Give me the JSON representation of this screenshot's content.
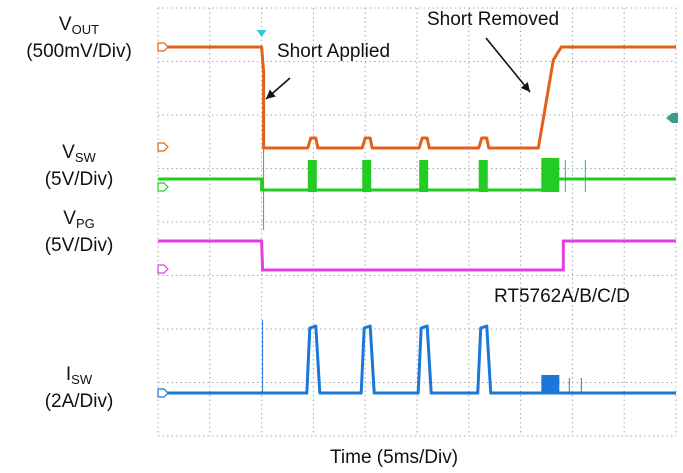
{
  "labels": {
    "vout": {
      "main": "V",
      "sub": "OUT",
      "scale": "(500mV/Div)"
    },
    "vsw": {
      "main": "V",
      "sub": "SW",
      "scale": "(5V/Div)"
    },
    "vpg": {
      "main": "V",
      "sub": "PG",
      "scale": "(5V/Div)"
    },
    "isw": {
      "main": "I",
      "sub": "SW",
      "scale": "(2A/Div)"
    }
  },
  "annotations": {
    "short_applied": "Short Applied",
    "short_removed": "Short Removed",
    "part_number": "RT5762A/B/C/D"
  },
  "chart_data": {
    "type": "line",
    "xlabel": "Time (5ms/Div)",
    "x_divisions": 10,
    "y_divisions": 8,
    "grid": true,
    "colors": {
      "vout": "#e0601c",
      "vsw": "#22cc22",
      "vpg": "#e040e0",
      "isw": "#1a78d8",
      "grid": "#a8a8a8"
    },
    "events_div": {
      "short_applied": 2.0,
      "short_removed": 7.4
    },
    "hiccup_pulses_div": [
      2.95,
      4.0,
      5.1,
      6.25
    ],
    "series": [
      {
        "key": "vout"
      },
      {
        "key": "vsw"
      },
      {
        "key": "vpg"
      },
      {
        "key": "isw"
      }
    ]
  }
}
